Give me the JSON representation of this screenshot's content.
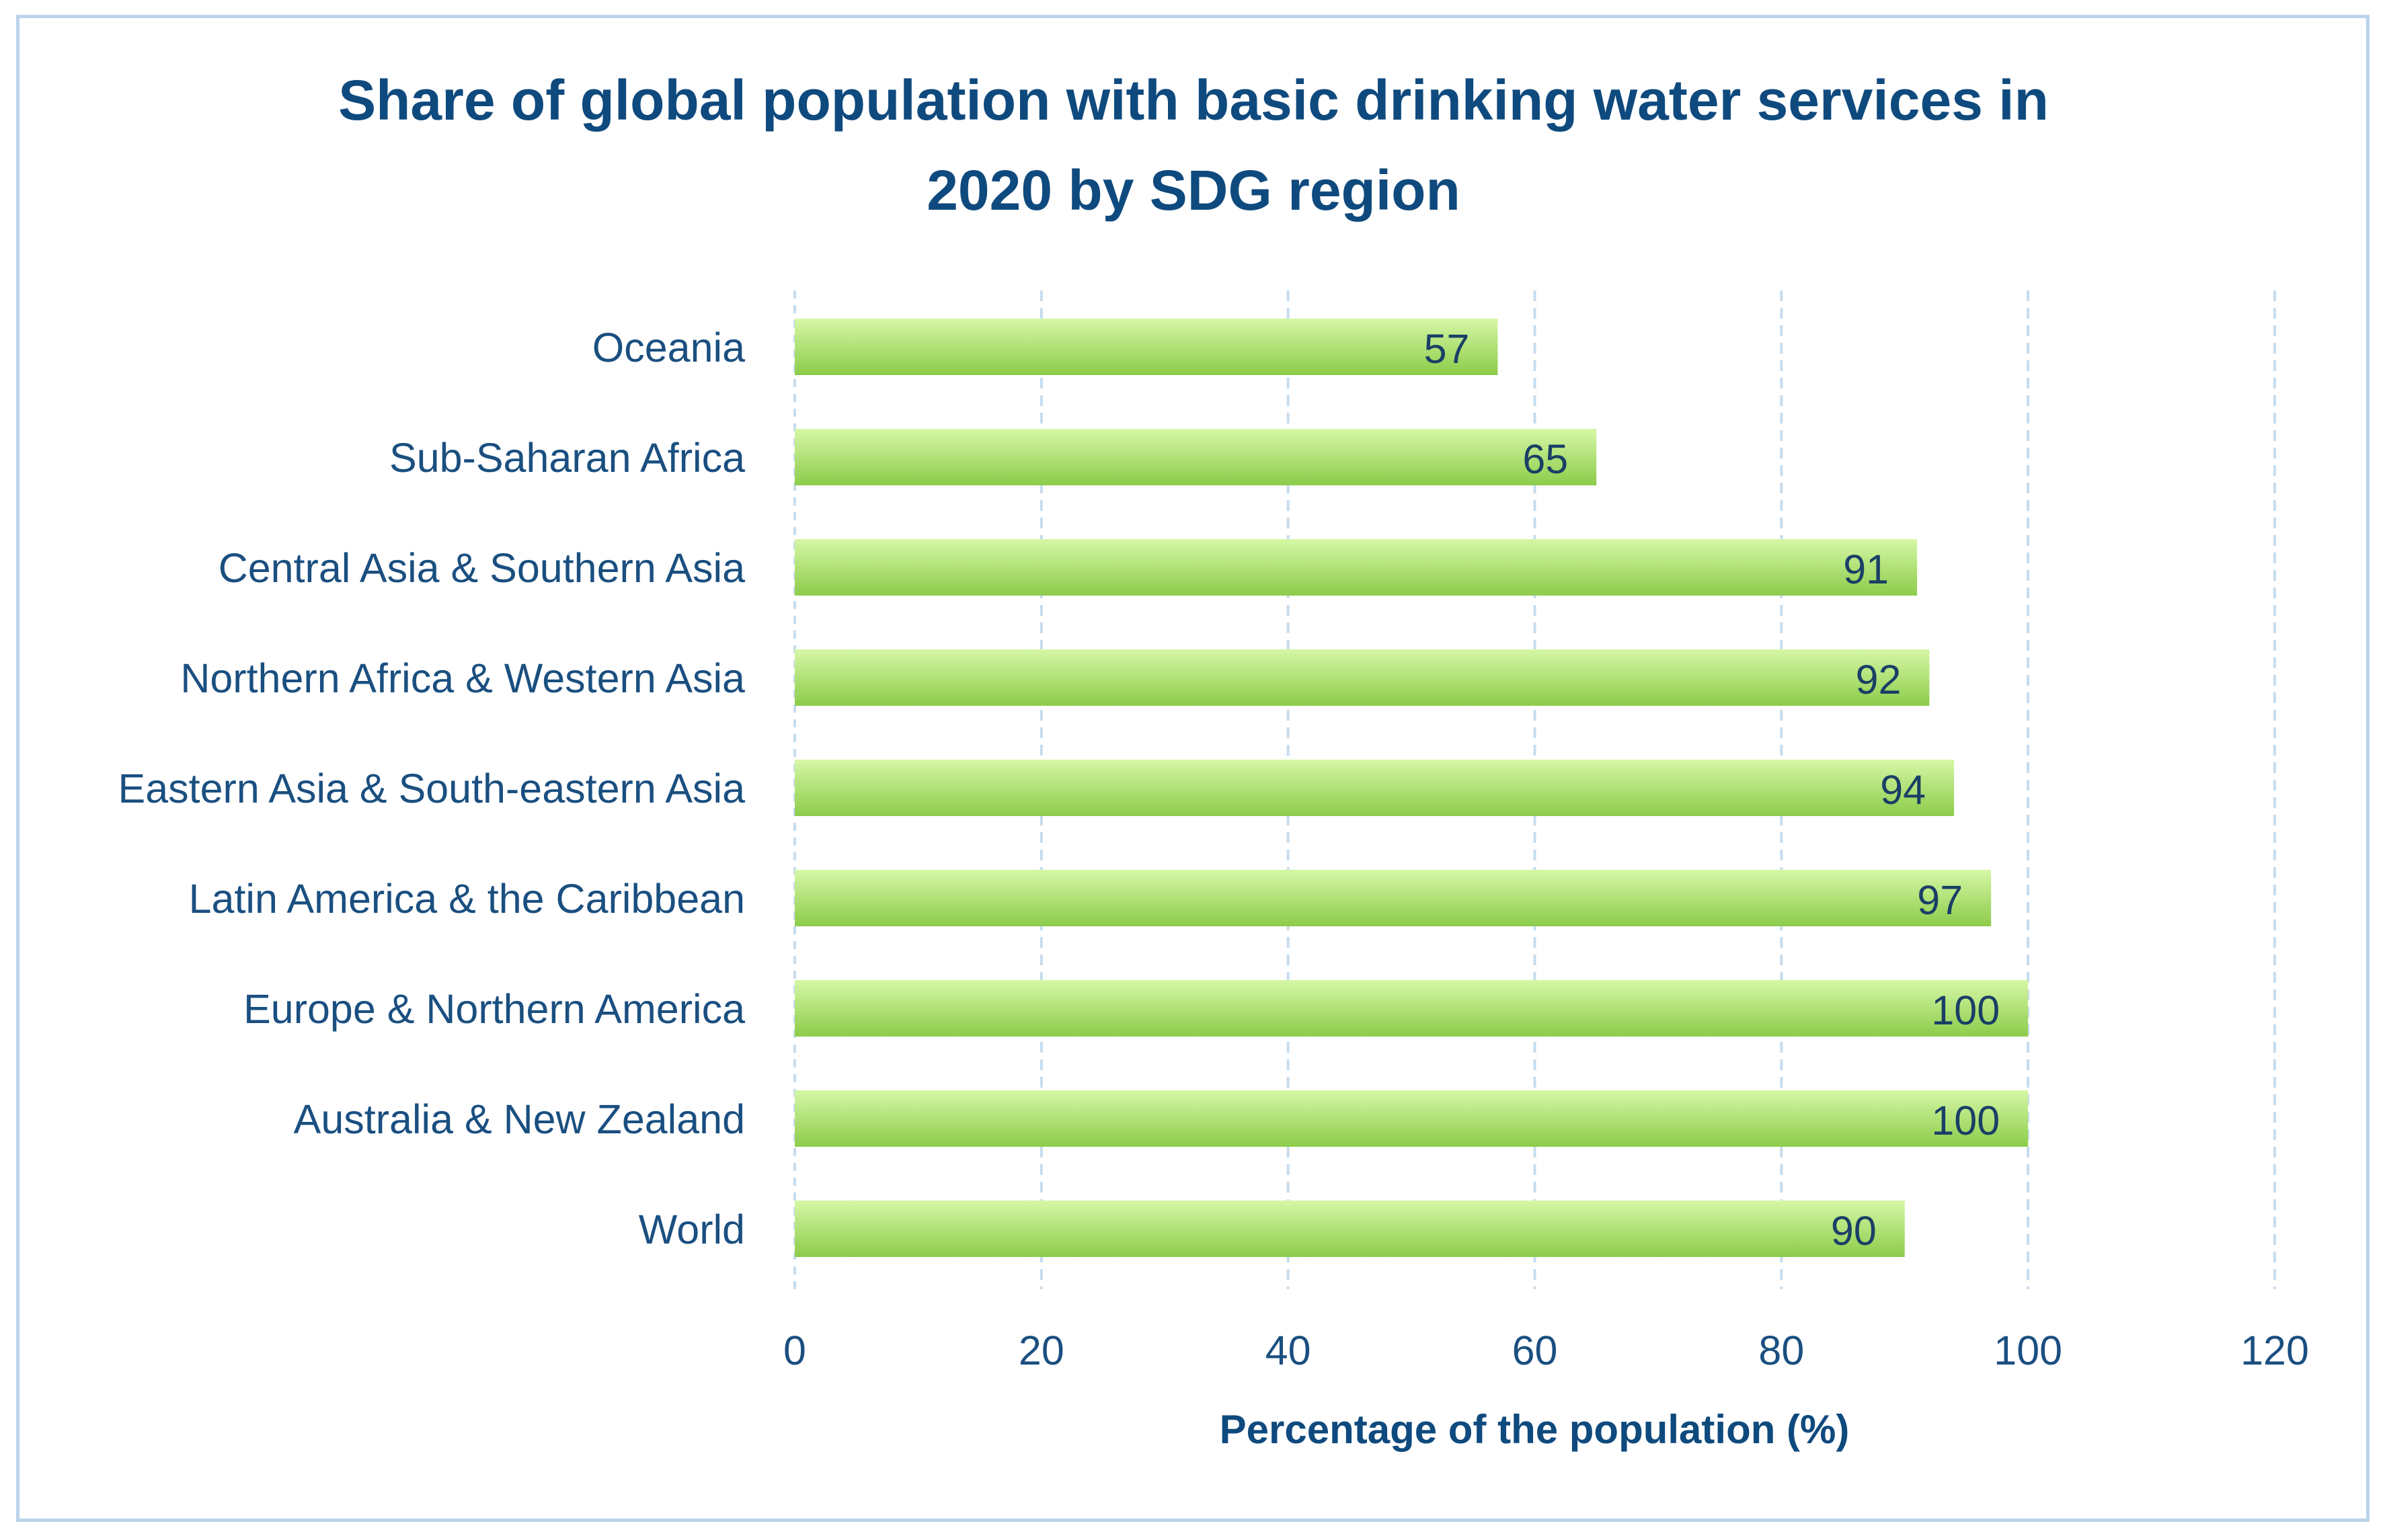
{
  "chart_data": {
    "type": "bar",
    "orientation": "horizontal",
    "title": "Share of global population with basic drinking water services in\n2020 by SDG region",
    "categories": [
      "Oceania",
      "Sub-Saharan Africa",
      "Central Asia & Southern Asia",
      "Northern Africa & Western Asia",
      "Eastern Asia & South-eastern Asia",
      "Latin America & the Caribbean",
      "Europe & Northern America",
      "Australia & New Zealand",
      "World"
    ],
    "values": [
      57,
      65,
      91,
      92,
      94,
      97,
      100,
      100,
      90
    ],
    "xlabel": "Percentage of the population (%)",
    "ylabel": "",
    "xlim": [
      0,
      120
    ],
    "xticks": [
      0,
      20,
      40,
      60,
      80,
      100,
      120
    ],
    "grid": "vertical dashed",
    "data_labels": true,
    "colors": {
      "bar_light": "#d6f7a6",
      "bar_dark": "#8ccc4a",
      "text": "#1a4f80",
      "title": "#0f4a7e",
      "grid": "#c6dcee",
      "frame": "#b9d3ea"
    }
  }
}
